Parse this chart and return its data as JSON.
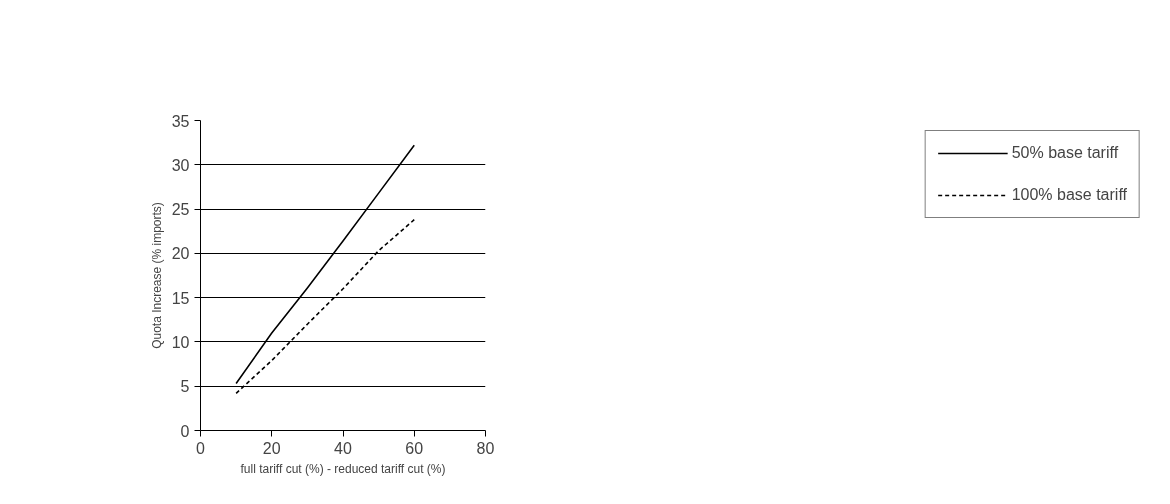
{
  "chart_data": {
    "type": "line",
    "xlabel": "full tariff cut (%) - reduced tariff cut (%)",
    "ylabel": "Quota Increase (% imports)",
    "x": [
      10,
      20,
      30,
      40,
      50,
      60
    ],
    "series": [
      {
        "name": "50% base tariff",
        "color": "#000000",
        "line_style": "solid",
        "values": [
          5.3,
          11.0,
          16.1,
          21.4,
          26.8,
          32.2
        ]
      },
      {
        "name": "100% base tariff",
        "color": "#000000",
        "line_style": "dashed",
        "values": [
          4.2,
          7.9,
          12.0,
          16.0,
          20.3,
          23.8
        ]
      }
    ],
    "xlim": [
      0,
      80
    ],
    "xticks": [
      0,
      20,
      40,
      60,
      80
    ],
    "ylim": [
      0,
      35
    ],
    "yticks": [
      0,
      5,
      10,
      15,
      20,
      25,
      30,
      35
    ],
    "grid": "y",
    "legend": "right",
    "marker": "none"
  }
}
